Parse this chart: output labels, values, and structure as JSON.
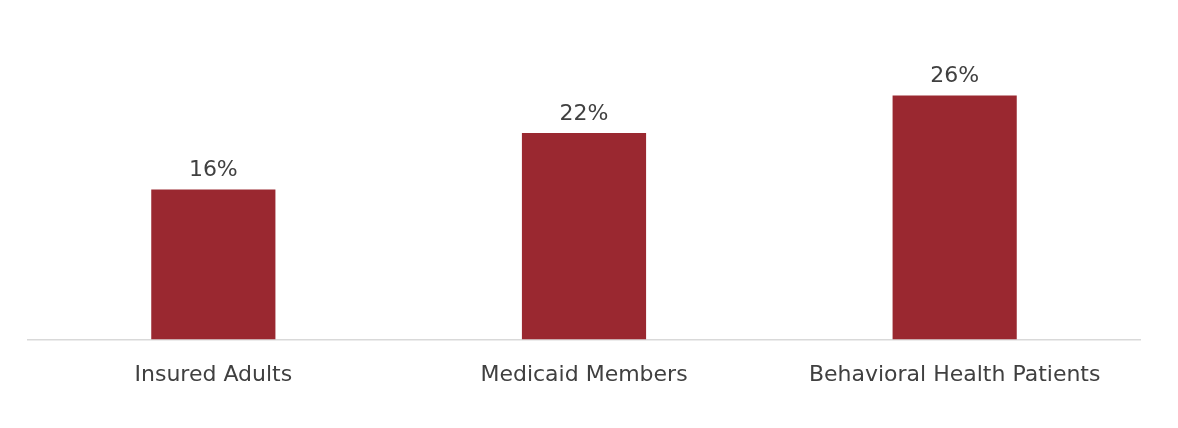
{
  "chart_data": {
    "type": "bar",
    "categories": [
      "Insured Adults",
      "Medicaid Members",
      "Behavioral Health Patients"
    ],
    "values": [
      16,
      22,
      26
    ],
    "value_labels": [
      "16%",
      "22%",
      "26%"
    ],
    "color": "#9a2830",
    "grid": false,
    "legend": false
  }
}
